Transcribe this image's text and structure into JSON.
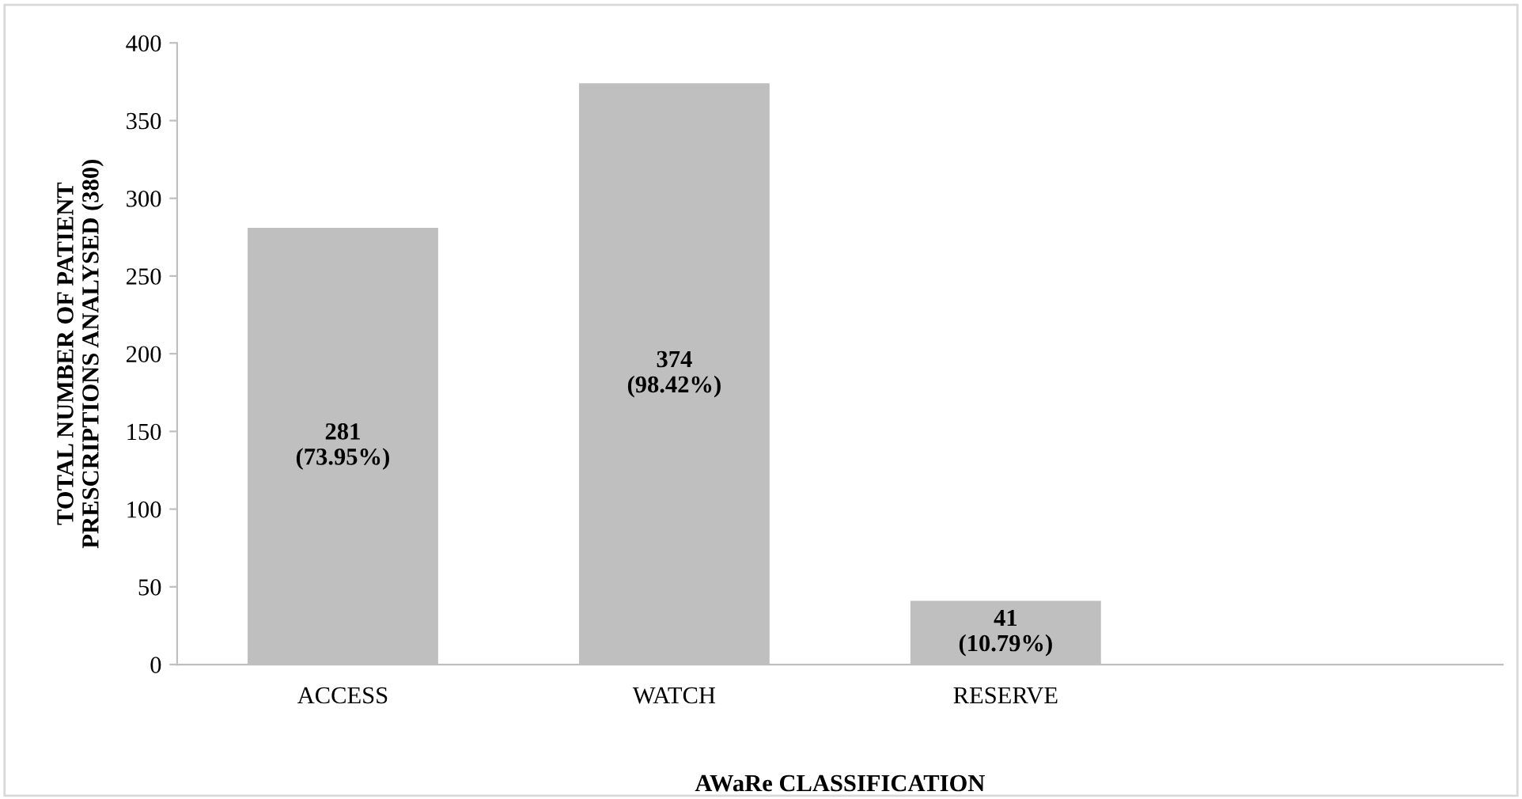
{
  "chart_data": {
    "type": "bar",
    "xlabel": "AWaRe CLASSIFICATION",
    "ylabel": "TOTAL NUMBER OF PATIENT\nPRESCRIPTIONS ANALYSED (380)",
    "categories": [
      "ACCESS",
      "WATCH",
      "RESERVE",
      null
    ],
    "values": [
      281,
      374,
      41,
      null
    ],
    "value_labels": [
      "281\n(73.95%)",
      "374\n(98.42%)",
      "41\n(10.79%)",
      null
    ],
    "color": "#bfbfbf",
    "ylim": [
      0,
      400
    ],
    "yticks": [
      0,
      50,
      100,
      150,
      200,
      250,
      300,
      350,
      400
    ],
    "grid": false,
    "legend": false
  }
}
